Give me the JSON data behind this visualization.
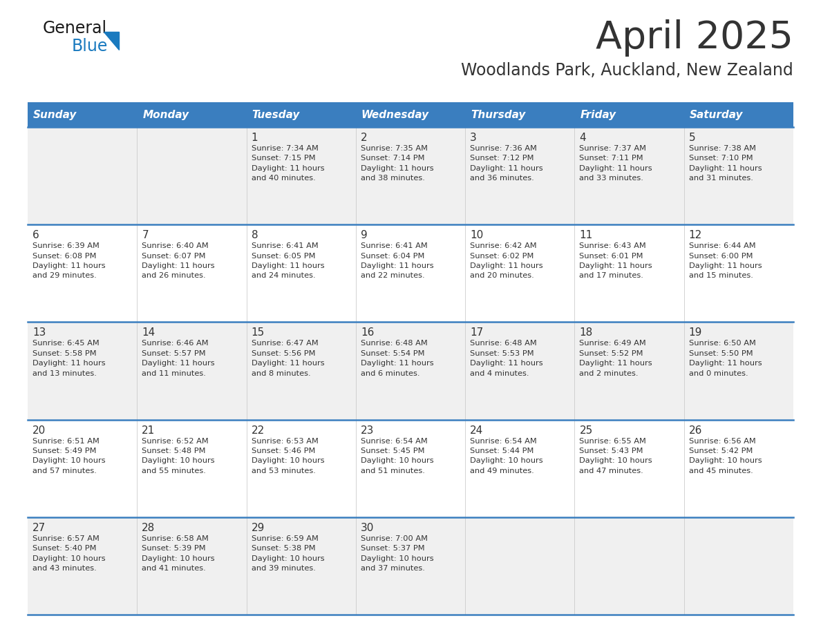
{
  "title": "April 2025",
  "subtitle": "Woodlands Park, Auckland, New Zealand",
  "header_bg": "#3a7ebf",
  "header_text": "#ffffff",
  "header_days": [
    "Sunday",
    "Monday",
    "Tuesday",
    "Wednesday",
    "Thursday",
    "Friday",
    "Saturday"
  ],
  "row_bg_odd": "#f0f0f0",
  "row_bg_even": "#ffffff",
  "border_color": "#3a7ebf",
  "text_color": "#333333",
  "logo_general_color": "#1a1a1a",
  "logo_blue_color": "#1a7abf",
  "weeks": [
    {
      "days": [
        {
          "day": "",
          "info": ""
        },
        {
          "day": "",
          "info": ""
        },
        {
          "day": "1",
          "info": "Sunrise: 7:34 AM\nSunset: 7:15 PM\nDaylight: 11 hours\nand 40 minutes."
        },
        {
          "day": "2",
          "info": "Sunrise: 7:35 AM\nSunset: 7:14 PM\nDaylight: 11 hours\nand 38 minutes."
        },
        {
          "day": "3",
          "info": "Sunrise: 7:36 AM\nSunset: 7:12 PM\nDaylight: 11 hours\nand 36 minutes."
        },
        {
          "day": "4",
          "info": "Sunrise: 7:37 AM\nSunset: 7:11 PM\nDaylight: 11 hours\nand 33 minutes."
        },
        {
          "day": "5",
          "info": "Sunrise: 7:38 AM\nSunset: 7:10 PM\nDaylight: 11 hours\nand 31 minutes."
        }
      ]
    },
    {
      "days": [
        {
          "day": "6",
          "info": "Sunrise: 6:39 AM\nSunset: 6:08 PM\nDaylight: 11 hours\nand 29 minutes."
        },
        {
          "day": "7",
          "info": "Sunrise: 6:40 AM\nSunset: 6:07 PM\nDaylight: 11 hours\nand 26 minutes."
        },
        {
          "day": "8",
          "info": "Sunrise: 6:41 AM\nSunset: 6:05 PM\nDaylight: 11 hours\nand 24 minutes."
        },
        {
          "day": "9",
          "info": "Sunrise: 6:41 AM\nSunset: 6:04 PM\nDaylight: 11 hours\nand 22 minutes."
        },
        {
          "day": "10",
          "info": "Sunrise: 6:42 AM\nSunset: 6:02 PM\nDaylight: 11 hours\nand 20 minutes."
        },
        {
          "day": "11",
          "info": "Sunrise: 6:43 AM\nSunset: 6:01 PM\nDaylight: 11 hours\nand 17 minutes."
        },
        {
          "day": "12",
          "info": "Sunrise: 6:44 AM\nSunset: 6:00 PM\nDaylight: 11 hours\nand 15 minutes."
        }
      ]
    },
    {
      "days": [
        {
          "day": "13",
          "info": "Sunrise: 6:45 AM\nSunset: 5:58 PM\nDaylight: 11 hours\nand 13 minutes."
        },
        {
          "day": "14",
          "info": "Sunrise: 6:46 AM\nSunset: 5:57 PM\nDaylight: 11 hours\nand 11 minutes."
        },
        {
          "day": "15",
          "info": "Sunrise: 6:47 AM\nSunset: 5:56 PM\nDaylight: 11 hours\nand 8 minutes."
        },
        {
          "day": "16",
          "info": "Sunrise: 6:48 AM\nSunset: 5:54 PM\nDaylight: 11 hours\nand 6 minutes."
        },
        {
          "day": "17",
          "info": "Sunrise: 6:48 AM\nSunset: 5:53 PM\nDaylight: 11 hours\nand 4 minutes."
        },
        {
          "day": "18",
          "info": "Sunrise: 6:49 AM\nSunset: 5:52 PM\nDaylight: 11 hours\nand 2 minutes."
        },
        {
          "day": "19",
          "info": "Sunrise: 6:50 AM\nSunset: 5:50 PM\nDaylight: 11 hours\nand 0 minutes."
        }
      ]
    },
    {
      "days": [
        {
          "day": "20",
          "info": "Sunrise: 6:51 AM\nSunset: 5:49 PM\nDaylight: 10 hours\nand 57 minutes."
        },
        {
          "day": "21",
          "info": "Sunrise: 6:52 AM\nSunset: 5:48 PM\nDaylight: 10 hours\nand 55 minutes."
        },
        {
          "day": "22",
          "info": "Sunrise: 6:53 AM\nSunset: 5:46 PM\nDaylight: 10 hours\nand 53 minutes."
        },
        {
          "day": "23",
          "info": "Sunrise: 6:54 AM\nSunset: 5:45 PM\nDaylight: 10 hours\nand 51 minutes."
        },
        {
          "day": "24",
          "info": "Sunrise: 6:54 AM\nSunset: 5:44 PM\nDaylight: 10 hours\nand 49 minutes."
        },
        {
          "day": "25",
          "info": "Sunrise: 6:55 AM\nSunset: 5:43 PM\nDaylight: 10 hours\nand 47 minutes."
        },
        {
          "day": "26",
          "info": "Sunrise: 6:56 AM\nSunset: 5:42 PM\nDaylight: 10 hours\nand 45 minutes."
        }
      ]
    },
    {
      "days": [
        {
          "day": "27",
          "info": "Sunrise: 6:57 AM\nSunset: 5:40 PM\nDaylight: 10 hours\nand 43 minutes."
        },
        {
          "day": "28",
          "info": "Sunrise: 6:58 AM\nSunset: 5:39 PM\nDaylight: 10 hours\nand 41 minutes."
        },
        {
          "day": "29",
          "info": "Sunrise: 6:59 AM\nSunset: 5:38 PM\nDaylight: 10 hours\nand 39 minutes."
        },
        {
          "day": "30",
          "info": "Sunrise: 7:00 AM\nSunset: 5:37 PM\nDaylight: 10 hours\nand 37 minutes."
        },
        {
          "day": "",
          "info": ""
        },
        {
          "day": "",
          "info": ""
        },
        {
          "day": "",
          "info": ""
        }
      ]
    }
  ]
}
